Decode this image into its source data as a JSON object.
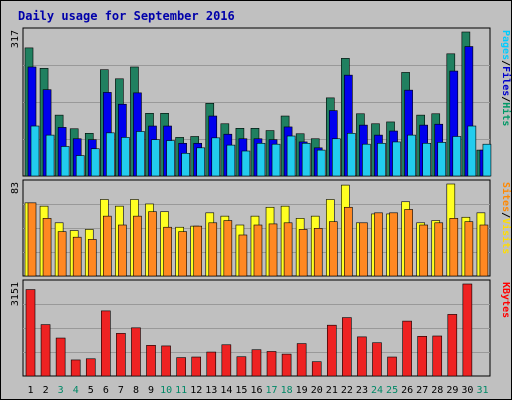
{
  "chart_data": [
    {
      "type": "bar",
      "title": "Daily usage for September 2016",
      "categories": [
        "1",
        "2",
        "3",
        "4",
        "5",
        "6",
        "7",
        "8",
        "9",
        "10",
        "11",
        "12",
        "13",
        "14",
        "15",
        "16",
        "17",
        "18",
        "19",
        "20",
        "21",
        "22",
        "23",
        "24",
        "25",
        "26",
        "27",
        "28",
        "29",
        "30",
        "31"
      ],
      "weekend_categories": [
        "3",
        "4",
        "10",
        "11",
        "17",
        "18",
        "24",
        "25",
        "31"
      ],
      "panels": [
        {
          "name": "hits-files-pages",
          "ylabel_parts": [
            "Pages",
            "/",
            "Files",
            "/",
            "Hits"
          ],
          "ylabel_colors": [
            "#00ccff",
            "#000000",
            "#0000cc",
            "#000000",
            "#009966"
          ],
          "max_label": "317",
          "ymax": 317,
          "series": [
            {
              "name": "Hits",
              "color": "#208060",
              "values": [
                282,
                237,
                134,
                104,
                94,
                234,
                214,
                240,
                138,
                138,
                85,
                87,
                160,
                115,
                105,
                105,
                100,
                132,
                93,
                82,
                172,
                259,
                137,
                115,
                119,
                228,
                134,
                137,
                269,
                317,
                57
              ]
            },
            {
              "name": "Files",
              "color": "#0000ee",
              "values": [
                240,
                190,
                107,
                82,
                80,
                184,
                158,
                183,
                110,
                110,
                72,
                72,
                132,
                92,
                82,
                82,
                80,
                108,
                75,
                62,
                144,
                222,
                112,
                90,
                99,
                189,
                112,
                114,
                231,
                285,
                57
              ]
            },
            {
              "name": "Pages",
              "color": "#22ccee",
              "values": [
                110,
                90,
                65,
                45,
                60,
                95,
                85,
                98,
                80,
                78,
                50,
                62,
                84,
                68,
                55,
                72,
                70,
                88,
                72,
                57,
                82,
                94,
                70,
                72,
                75,
                90,
                72,
                74,
                87,
                110,
                70
              ]
            }
          ]
        },
        {
          "name": "visits-sites",
          "ylabel_parts": [
            "Sites",
            "/",
            "Visits"
          ],
          "ylabel_colors": [
            "#ff8800",
            "#000000",
            "#ffdd00"
          ],
          "max_label": "83",
          "ymax": 83,
          "series": [
            {
              "name": "Visits",
              "color": "#ffff22",
              "values": [
                66,
                63,
                48,
                41,
                42,
                69,
                63,
                69,
                65,
                58,
                44,
                45,
                57,
                54,
                46,
                54,
                62,
                63,
                52,
                54,
                69,
                82,
                48,
                56,
                56,
                67,
                48,
                50,
                83,
                53,
                57
              ]
            },
            {
              "name": "Sites",
              "color": "#ff8822",
              "values": [
                66,
                52,
                40,
                35,
                33,
                54,
                46,
                54,
                58,
                44,
                40,
                45,
                48,
                50,
                37,
                46,
                47,
                48,
                42,
                43,
                49,
                62,
                48,
                57,
                57,
                60,
                46,
                48,
                52,
                49,
                46
              ]
            }
          ]
        },
        {
          "name": "kbytes",
          "ylabel_parts": [
            "KBytes"
          ],
          "ylabel_colors": [
            "#ff0000"
          ],
          "max_label": "3151",
          "ymax": 3151,
          "series": [
            {
              "name": "KBytes",
              "color": "#ee2222",
              "values": [
                2960,
                1760,
                1300,
                550,
                590,
                2230,
                1460,
                1650,
                1050,
                1030,
                630,
                650,
                820,
                1070,
                660,
                900,
                840,
                750,
                1110,
                490,
                1740,
                2000,
                1340,
                1140,
                650,
                1880,
                1360,
                1370,
                2110,
                3151,
                0
              ]
            }
          ]
        }
      ]
    }
  ]
}
